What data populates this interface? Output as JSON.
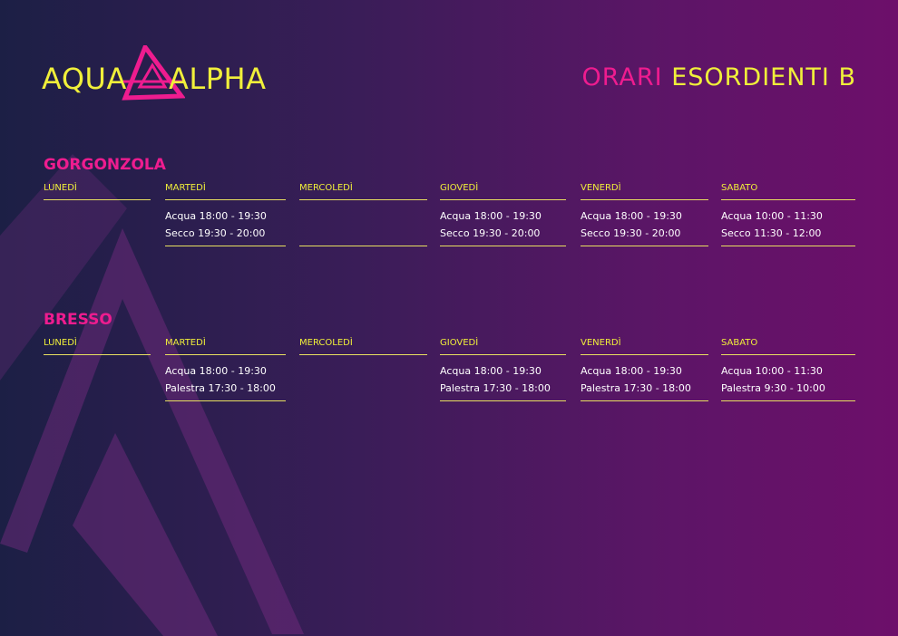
{
  "brand": {
    "left": "AQUA",
    "right": "ALPHA",
    "mark": "triangle-logo-icon"
  },
  "title": {
    "accent": "ORARI",
    "main": "ESORDIENTI B"
  },
  "colors": {
    "accent": "#ee1c8f",
    "highlight": "#f0ef3a",
    "text": "#ffffff"
  },
  "sections": [
    {
      "name": "GORGONZOLA",
      "days": [
        {
          "name": "LUNEDÌ",
          "slots": []
        },
        {
          "name": "MARTEDÌ",
          "slots": [
            "Acqua 18:00 - 19:30",
            "Secco 19:30 - 20:00"
          ]
        },
        {
          "name": "MERCOLEDÌ",
          "slots": []
        },
        {
          "name": "GIOVEDÌ",
          "slots": [
            "Acqua 18:00 - 19:30",
            "Secco 19:30 - 20:00"
          ]
        },
        {
          "name": "VENERDÌ",
          "slots": [
            "Acqua 18:00 - 19:30",
            "Secco 19:30 - 20:00"
          ]
        },
        {
          "name": "SABATO",
          "slots": [
            "Acqua 10:00 - 11:30",
            "Secco 11:30 - 12:00"
          ]
        }
      ]
    },
    {
      "name": "BRESSO",
      "days": [
        {
          "name": "LUNEDÌ",
          "slots": []
        },
        {
          "name": "MARTEDÌ",
          "slots": [
            "Acqua 18:00 - 19:30",
            "Palestra 17:30 - 18:00"
          ]
        },
        {
          "name": "MERCOLEDÌ",
          "slots": []
        },
        {
          "name": "GIOVEDÌ",
          "slots": [
            "Acqua 18:00 - 19:30",
            "Palestra 17:30 - 18:00"
          ]
        },
        {
          "name": "VENERDÌ",
          "slots": [
            "Acqua 18:00 - 19:30",
            "Palestra 17:30 - 18:00"
          ]
        },
        {
          "name": "SABATO",
          "slots": [
            "Acqua 10:00 - 11:30",
            "Palestra 9:30 - 10:00"
          ]
        }
      ]
    }
  ]
}
